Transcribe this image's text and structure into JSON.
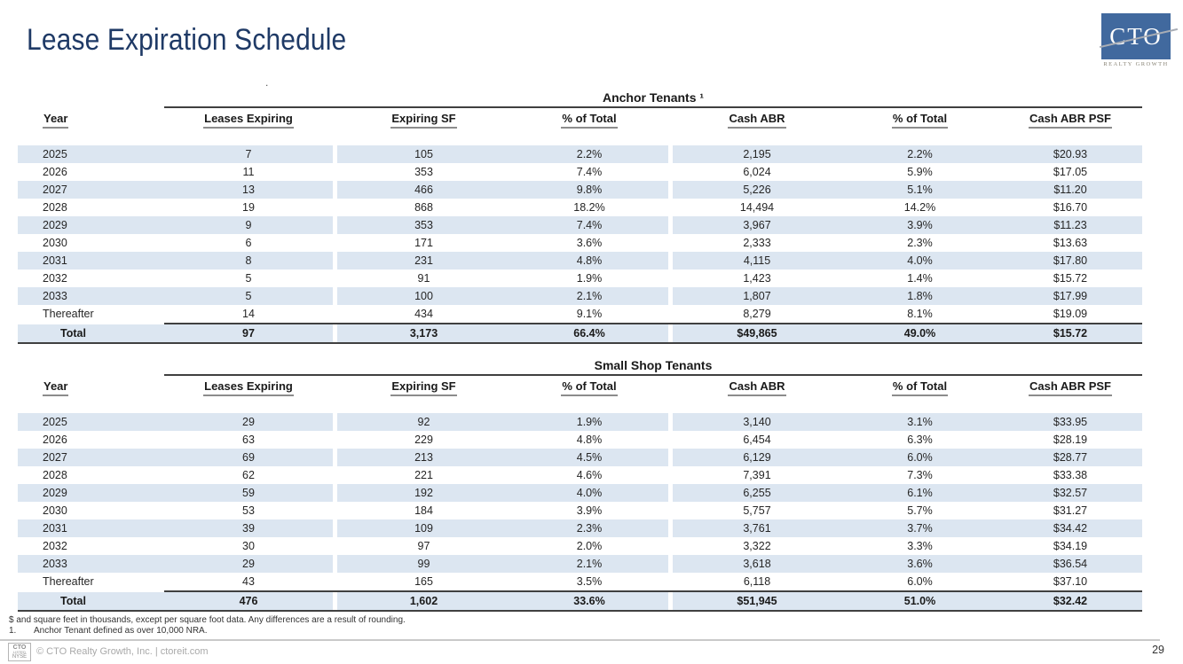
{
  "header": {
    "title": "Lease Expiration Schedule",
    "stray_dot": "."
  },
  "logo": {
    "mark": "CTO",
    "subtext": "REALTY GROWTH"
  },
  "columns": [
    "Year",
    "Leases Expiring",
    "Expiring SF",
    "% of Total",
    "Cash ABR",
    "% of Total",
    "Cash ABR PSF"
  ],
  "tables": [
    {
      "title": "Anchor Tenants ¹",
      "rows": [
        [
          "2025",
          "7",
          "105",
          "2.2%",
          "2,195",
          "2.2%",
          "$20.93"
        ],
        [
          "2026",
          "11",
          "353",
          "7.4%",
          "6,024",
          "5.9%",
          "$17.05"
        ],
        [
          "2027",
          "13",
          "466",
          "9.8%",
          "5,226",
          "5.1%",
          "$11.20"
        ],
        [
          "2028",
          "19",
          "868",
          "18.2%",
          "14,494",
          "14.2%",
          "$16.70"
        ],
        [
          "2029",
          "9",
          "353",
          "7.4%",
          "3,967",
          "3.9%",
          "$11.23"
        ],
        [
          "2030",
          "6",
          "171",
          "3.6%",
          "2,333",
          "2.3%",
          "$13.63"
        ],
        [
          "2031",
          "8",
          "231",
          "4.8%",
          "4,115",
          "4.0%",
          "$17.80"
        ],
        [
          "2032",
          "5",
          "91",
          "1.9%",
          "1,423",
          "1.4%",
          "$15.72"
        ],
        [
          "2033",
          "5",
          "100",
          "2.1%",
          "1,807",
          "1.8%",
          "$17.99"
        ],
        [
          "Thereafter",
          "14",
          "434",
          "9.1%",
          "8,279",
          "8.1%",
          "$19.09"
        ]
      ],
      "total": [
        "Total",
        "97",
        "3,173",
        "66.4%",
        "$49,865",
        "49.0%",
        "$15.72"
      ]
    },
    {
      "title": "Small Shop Tenants",
      "rows": [
        [
          "2025",
          "29",
          "92",
          "1.9%",
          "3,140",
          "3.1%",
          "$33.95"
        ],
        [
          "2026",
          "63",
          "229",
          "4.8%",
          "6,454",
          "6.3%",
          "$28.19"
        ],
        [
          "2027",
          "69",
          "213",
          "4.5%",
          "6,129",
          "6.0%",
          "$28.77"
        ],
        [
          "2028",
          "62",
          "221",
          "4.6%",
          "7,391",
          "7.3%",
          "$33.38"
        ],
        [
          "2029",
          "59",
          "192",
          "4.0%",
          "6,255",
          "6.1%",
          "$32.57"
        ],
        [
          "2030",
          "53",
          "184",
          "3.9%",
          "5,757",
          "5.7%",
          "$31.27"
        ],
        [
          "2031",
          "39",
          "109",
          "2.3%",
          "3,761",
          "3.7%",
          "$34.42"
        ],
        [
          "2032",
          "30",
          "97",
          "2.0%",
          "3,322",
          "3.3%",
          "$34.19"
        ],
        [
          "2033",
          "29",
          "99",
          "2.1%",
          "3,618",
          "3.6%",
          "$36.54"
        ],
        [
          "Thereafter",
          "43",
          "165",
          "3.5%",
          "6,118",
          "6.0%",
          "$37.10"
        ]
      ],
      "total": [
        "Total",
        "476",
        "1,602",
        "33.6%",
        "$51,945",
        "51.0%",
        "$32.42"
      ]
    }
  ],
  "footnotes": {
    "line1": "$ and square feet in thousands, except per square foot data. Any differences are a result of rounding.",
    "item_number": "1.",
    "item_text": "Anchor Tenant defined as over 10,000 NRA."
  },
  "footer": {
    "badge": [
      "CTO",
      "LISTED",
      "NYSE"
    ],
    "copyright": "© CTO Realty Growth, Inc. | ctoreit.com",
    "page_number": "29"
  },
  "colors": {
    "title_navy": "#1F3A66",
    "row_stripe_blue": "#DCE6F1",
    "table_rule": "#404040",
    "header_underline": "#8C8C8C",
    "logo_blue": "#41699E",
    "footer_gray": "#A9A9A9"
  }
}
